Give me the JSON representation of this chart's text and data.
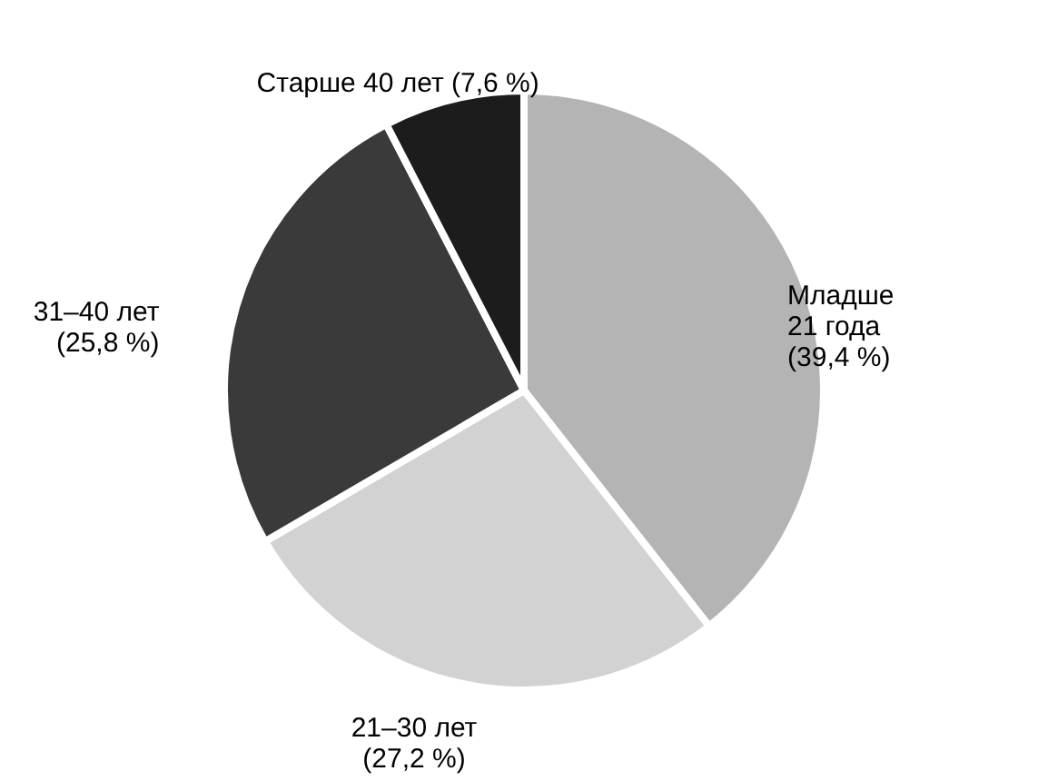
{
  "chart_data": {
    "type": "pie",
    "categories": [
      "Младше 21 года",
      "21–30 лет",
      "31–40 лет",
      "Старше 40 лет"
    ],
    "values": [
      39.4,
      27.2,
      25.8,
      7.6
    ],
    "value_labels": [
      "(39,4 %)",
      "(27,2 %)",
      "(25,8 %)",
      "(7,6 %)"
    ],
    "colors": [
      "#b4b4b4",
      "#d2d2d2",
      "#3a3a3a",
      "#1c1c1c"
    ]
  }
}
